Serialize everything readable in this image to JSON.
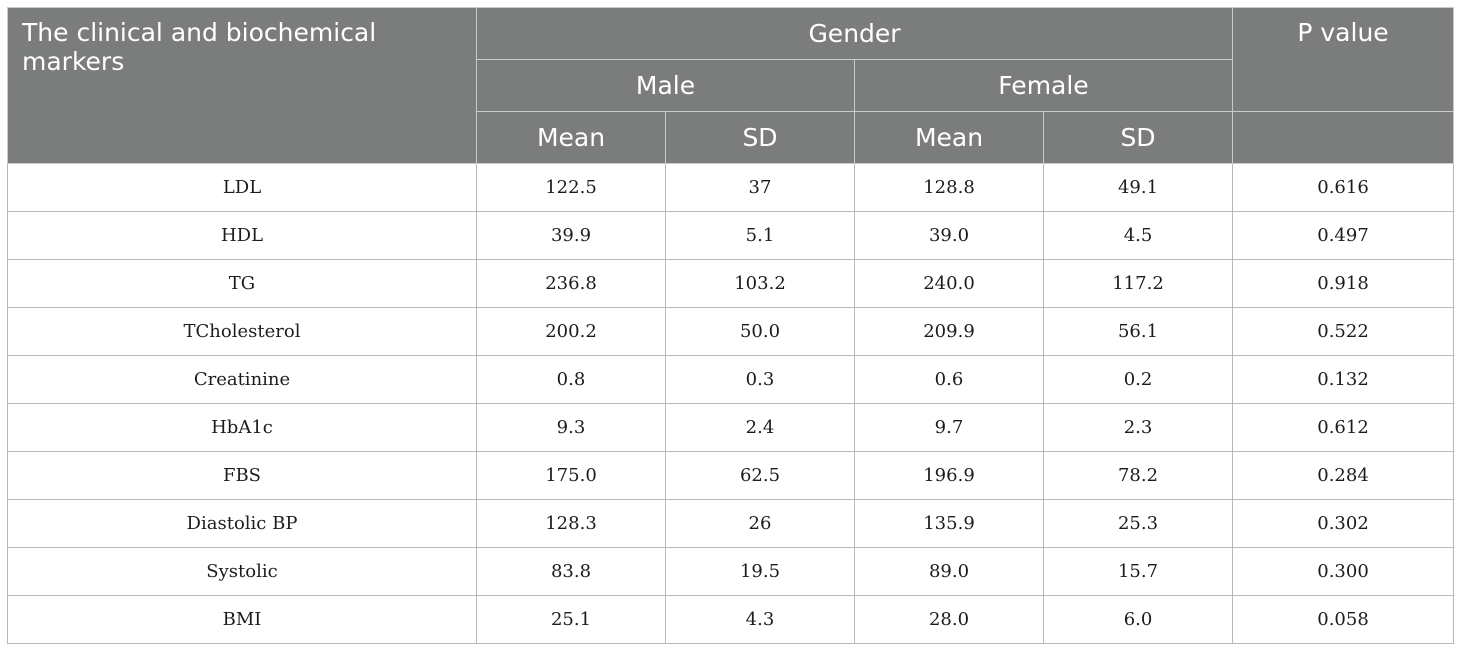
{
  "table": {
    "header": {
      "marker_col": "The clinical and biochemical markers",
      "group": "Gender",
      "p_value": "P value",
      "male": "Male",
      "female": "Female",
      "male_mean": "Mean",
      "male_sd": "SD",
      "female_mean": "Mean",
      "female_sd": "SD"
    },
    "rows": [
      {
        "marker": "LDL",
        "male_mean": "122.5",
        "male_sd": "37",
        "female_mean": "128.8",
        "female_sd": "49.1",
        "p": "0.616"
      },
      {
        "marker": "HDL",
        "male_mean": "39.9",
        "male_sd": "5.1",
        "female_mean": "39.0",
        "female_sd": "4.5",
        "p": "0.497"
      },
      {
        "marker": "TG",
        "male_mean": "236.8",
        "male_sd": "103.2",
        "female_mean": "240.0",
        "female_sd": "117.2",
        "p": "0.918"
      },
      {
        "marker": "TCholesterol",
        "male_mean": "200.2",
        "male_sd": "50.0",
        "female_mean": "209.9",
        "female_sd": "56.1",
        "p": "0.522"
      },
      {
        "marker": "Creatinine",
        "male_mean": "0.8",
        "male_sd": "0.3",
        "female_mean": "0.6",
        "female_sd": "0.2",
        "p": "0.132"
      },
      {
        "marker": "HbA1c",
        "male_mean": "9.3",
        "male_sd": "2.4",
        "female_mean": "9.7",
        "female_sd": "2.3",
        "p": "0.612"
      },
      {
        "marker": "FBS",
        "male_mean": "175.0",
        "male_sd": "62.5",
        "female_mean": "196.9",
        "female_sd": "78.2",
        "p": "0.284"
      },
      {
        "marker": "Diastolic BP",
        "male_mean": "128.3",
        "male_sd": "26",
        "female_mean": "135.9",
        "female_sd": "25.3",
        "p": "0.302"
      },
      {
        "marker": "Systolic",
        "male_mean": "83.8",
        "male_sd": "19.5",
        "female_mean": "89.0",
        "female_sd": "15.7",
        "p": "0.300"
      },
      {
        "marker": "BMI",
        "male_mean": "25.1",
        "male_sd": "4.3",
        "female_mean": "28.0",
        "female_sd": "6.0",
        "p": "0.058"
      }
    ]
  },
  "colors": {
    "header_bg": "#7b7d7c",
    "header_text": "#ffffff",
    "body_text": "#1c1c1c",
    "grid": "#b8b8b8"
  }
}
